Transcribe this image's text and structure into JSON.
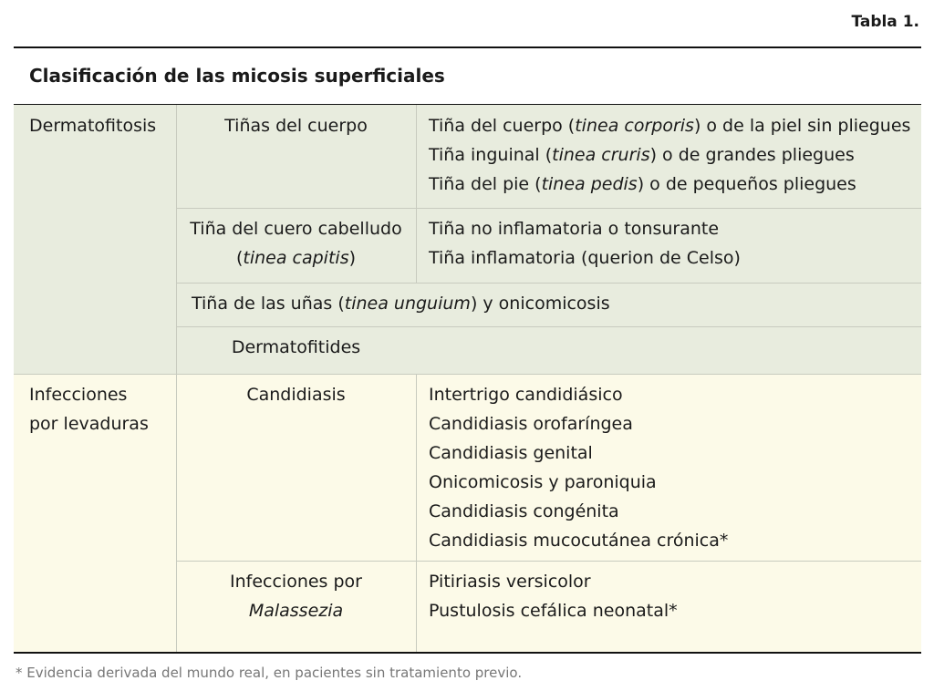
{
  "header": {
    "label": "Tabla 1."
  },
  "title": "Clasificación de las micosis superficiales",
  "groups": [
    {
      "name": [
        [
          "Dermatofitosis"
        ]
      ],
      "rows": [
        {
          "type": [
            [
              "Tiñas del cuerpo"
            ]
          ],
          "items": [
            [
              "Tiña del cuerpo (",
              {
                "text": "tinea corporis",
                "italic": true
              },
              ") o de la piel sin pliegues"
            ],
            [
              "Tiña inguinal (",
              {
                "text": "tinea cruris",
                "italic": true
              },
              ") o de grandes pliegues"
            ],
            [
              "Tiña del pie (",
              {
                "text": "tinea pedis",
                "italic": true
              },
              ") o de pequeños pliegues"
            ]
          ]
        },
        {
          "type": [
            [
              "Tiña del cuero cabelludo"
            ],
            [
              "(",
              {
                "text": "tinea capitis",
                "italic": true
              },
              ")"
            ]
          ],
          "items": [
            [
              "Tiña no inflamatoria o tonsurante"
            ],
            [
              "Tiña inflamatoria (querion de Celso)"
            ]
          ]
        },
        {
          "span": [
            [
              "Tiña de las uñas (",
              {
                "text": "tinea unguium",
                "italic": true
              },
              ") y onicomicosis"
            ]
          ]
        },
        {
          "type": [
            [
              "Dermatofitides"
            ]
          ]
        }
      ]
    },
    {
      "name": [
        [
          "Infecciones"
        ],
        [
          "por levaduras"
        ]
      ],
      "rows": [
        {
          "type": [
            [
              "Candidiasis"
            ]
          ],
          "items": [
            [
              "Intertrigo candidiásico"
            ],
            [
              "Candidiasis orofaríngea"
            ],
            [
              "Candidiasis genital"
            ],
            [
              "Onicomicosis y paroniquia"
            ],
            [
              "Candidiasis congénita"
            ],
            [
              "Candidiasis mucocutánea crónica*"
            ]
          ]
        },
        {
          "type": [
            [
              "Infecciones por"
            ],
            [
              {
                "text": "Malassezia",
                "italic": true
              }
            ]
          ],
          "items": [
            [
              "Pitiriasis versicolor"
            ],
            [
              "Pustulosis cefálica neonatal*"
            ]
          ]
        }
      ]
    }
  ],
  "footnote": "* Evidencia derivada del mundo real, en pacientes sin tratamiento previo."
}
